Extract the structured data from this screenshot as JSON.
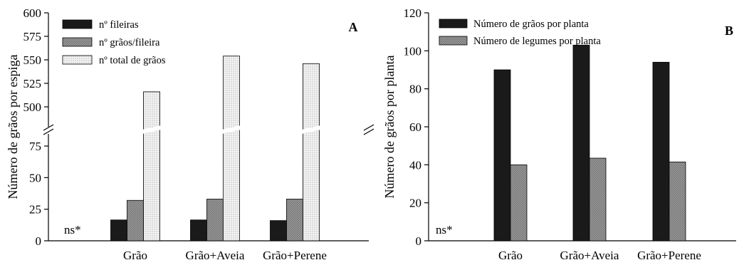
{
  "chart_data": [
    {
      "type": "bar",
      "panel_label": "A",
      "ylabel": "Número de grãos por espiga",
      "categories": [
        "Grão",
        "Grão+Aveia",
        "Grão+Perene"
      ],
      "axis_break": {
        "lower": [
          0,
          75
        ],
        "upper": [
          500,
          600
        ]
      },
      "lower_ticks": [
        "0",
        "25",
        "50",
        "75"
      ],
      "upper_ticks": [
        "500",
        "525",
        "550",
        "575",
        "600"
      ],
      "series": [
        {
          "name": "nº fileiras",
          "values": [
            16.5,
            16.5,
            16
          ],
          "pattern": "solid-black"
        },
        {
          "name": "nº grãos/fileira",
          "values": [
            32,
            33,
            33
          ],
          "pattern": "gray-diagonal"
        },
        {
          "name": "nº total de grãos",
          "values": [
            516,
            554,
            546
          ],
          "pattern": "dotted"
        }
      ],
      "annotation": "ns*",
      "legend_position": "top-left"
    },
    {
      "type": "bar",
      "panel_label": "B",
      "ylabel": "Número de grãos por planta",
      "categories": [
        "Grão",
        "Grão+Aveia",
        "Grão+Perene"
      ],
      "ylim": [
        0,
        120
      ],
      "yticks": [
        "0",
        "20",
        "40",
        "60",
        "80",
        "100",
        "120"
      ],
      "series": [
        {
          "name": "Número de grãos por planta",
          "values": [
            90,
            103,
            94
          ],
          "pattern": "solid-black"
        },
        {
          "name": "Número de legumes por planta",
          "values": [
            40,
            43.5,
            41.5
          ],
          "pattern": "gray-diagonal"
        }
      ],
      "annotation": "ns*",
      "legend_position": "top-left"
    }
  ]
}
